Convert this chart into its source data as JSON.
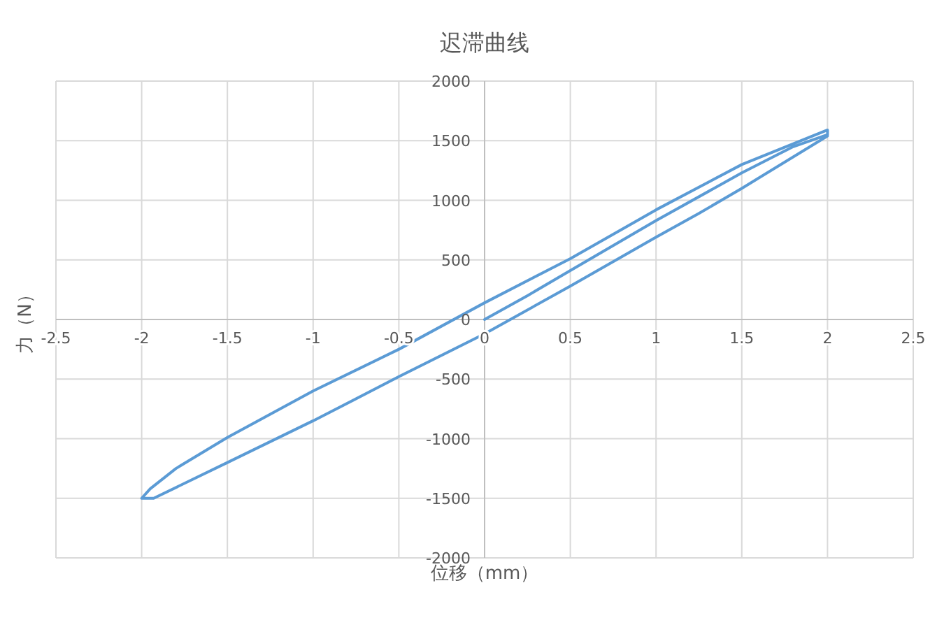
{
  "chart_data": {
    "type": "line",
    "title": "迟滞曲线",
    "xlabel": "位移（mm）",
    "ylabel": "力（N）",
    "series": [
      {
        "color": "#5b9bd5",
        "x": [
          0,
          0.25,
          0.5,
          1,
          1.5,
          1.8,
          2,
          2,
          1.5,
          1,
          0.5,
          0,
          -0.5,
          -1,
          -1.5,
          -1.8,
          -1.95,
          -2,
          -1.93,
          -1.5,
          -1,
          -0.5,
          0,
          0.5,
          1,
          1.25,
          1.5,
          2
        ],
        "values": [
          0,
          200,
          410,
          830,
          1230,
          1450,
          1550,
          1590,
          1300,
          920,
          510,
          140,
          -250,
          -600,
          -990,
          -1250,
          -1420,
          -1500,
          -1500,
          -1200,
          -850,
          -480,
          -120,
          280,
          690,
          890,
          1100,
          1540
        ]
      }
    ],
    "xlim": [
      -2.5,
      2.5
    ],
    "ylim": [
      -2000,
      2000
    ],
    "xticks": [
      -2.5,
      -2,
      -1.5,
      -1,
      -0.5,
      0,
      0.5,
      1,
      1.5,
      2,
      2.5
    ],
    "yticks": [
      -2000,
      -1500,
      -1000,
      -500,
      0,
      500,
      1000,
      1500,
      2000
    ],
    "grid": true,
    "marker": "none",
    "line_style": "solid"
  }
}
